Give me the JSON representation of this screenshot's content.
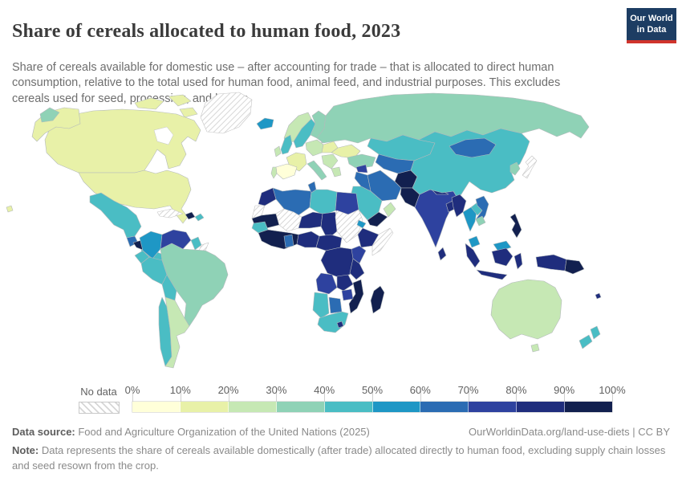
{
  "header": {
    "title": "Share of cereals allocated to human food, 2023",
    "logo_line1": "Our World",
    "logo_line2": "in Data",
    "logo_bg": "#1d3d63",
    "logo_accent": "#d0342c"
  },
  "subtitle": "Share of cereals available for domestic use – after accounting for trade – that is allocated to direct human consumption, relative to the total used for human food, animal feed, and industrial purposes. This excludes cereals used for seed, processing, and losses.",
  "legend": {
    "no_data_label": "No data",
    "tick_labels": [
      "0%",
      "10%",
      "20%",
      "30%",
      "40%",
      "50%",
      "60%",
      "70%",
      "80%",
      "90%",
      "100%"
    ],
    "bin_colors": [
      "#ffffd9",
      "#e8f1a8",
      "#c6e8b4",
      "#8fd2b6",
      "#4abdc4",
      "#1e97c5",
      "#2b6cb3",
      "#2e429f",
      "#1f2d7d",
      "#12204f"
    ]
  },
  "footer": {
    "source_label": "Data source:",
    "source_text": " Food and Agriculture Organization of the United Nations (2025)",
    "link_text": "OurWorldinData.org/land-use-diets | CC BY",
    "note_label": "Note:",
    "note_text": " Data represents the share of cereals available domestically (after trade) allocated directly to human food, excluding supply chain losses and seed resown from the crop."
  },
  "chart_data": {
    "type": "choropleth_map",
    "title": "Share of cereals allocated to human food",
    "year": 2023,
    "unit": "%",
    "bins": [
      "0-10%",
      "10-20%",
      "20-30%",
      "30-40%",
      "40-50%",
      "50-60%",
      "60-70%",
      "70-80%",
      "80-90%",
      "90-100%",
      "No data"
    ],
    "region_bins": {
      "greenland": "nodata",
      "canada": 1,
      "canada-arctic": 1,
      "usa": 1,
      "russia-east": 3,
      "mexico": 4,
      "guatemala": 6,
      "honduras-el-salvador": 9,
      "nicaragua-panama": 4,
      "cuba": "nodata",
      "haiti": 9,
      "dominican-republic": 4,
      "colombia": 5,
      "venezuela": 7,
      "guyana": 4,
      "suriname": "nodata",
      "brazil": 3,
      "ecuador": 4,
      "peru": 4,
      "bolivia": 4,
      "chile": 4,
      "argentina": 2,
      "iceland": 5,
      "norway": 2,
      "sweden": 4,
      "finland": 3,
      "uk": 4,
      "ireland": 2,
      "france": 1,
      "spain": 0,
      "portugal": 2,
      "central-europe": 2,
      "poland": 1,
      "ukraine": 1,
      "baltics": 3,
      "italy": 3,
      "balkans": 2,
      "greece": 2,
      "turkey": 3,
      "russia": 3,
      "kazakhstan": 4,
      "central-asia": 6,
      "afghanistan": 9,
      "iran": 6,
      "iraq": 6,
      "syria": 7,
      "saudi-arabia": 4,
      "yemen": 9,
      "oman": 2,
      "pakistan": 9,
      "india": 7,
      "nepal": 8,
      "bangladesh": 8,
      "sri-lanka": 8,
      "china": 4,
      "mongolia": 6,
      "korea": 3,
      "japan": "nodata",
      "myanmar": 8,
      "thailand": 5,
      "laos": 4,
      "cambodia": 3,
      "vietnam": 6,
      "malaysia": 5,
      "indonesia": 8,
      "philippines": 9,
      "papua-new-guinea": 9,
      "morocco": 8,
      "western-sahara": "nodata",
      "algeria": 6,
      "tunisia": 6,
      "libya": 4,
      "egypt": 7,
      "mauritania": 9,
      "mali": "nodata",
      "niger": 8,
      "chad": 8,
      "sudan": "nodata",
      "eritrea": 5,
      "ethiopia": 8,
      "somalia": "nodata",
      "senegal": 4,
      "west-africa": 9,
      "ghana": 6,
      "nigeria": 8,
      "cameroon-car": 8,
      "drc": 8,
      "kenya": 7,
      "tanzania": 8,
      "angola": 7,
      "zambia": 8,
      "mozambique": 9,
      "zimbabwe": 7,
      "namibia": 4,
      "botswana": 6,
      "south-africa": 4,
      "lesotho": 8,
      "madagascar": 9,
      "australia": 2,
      "new-zealand": 4,
      "fiji": 8
    }
  }
}
